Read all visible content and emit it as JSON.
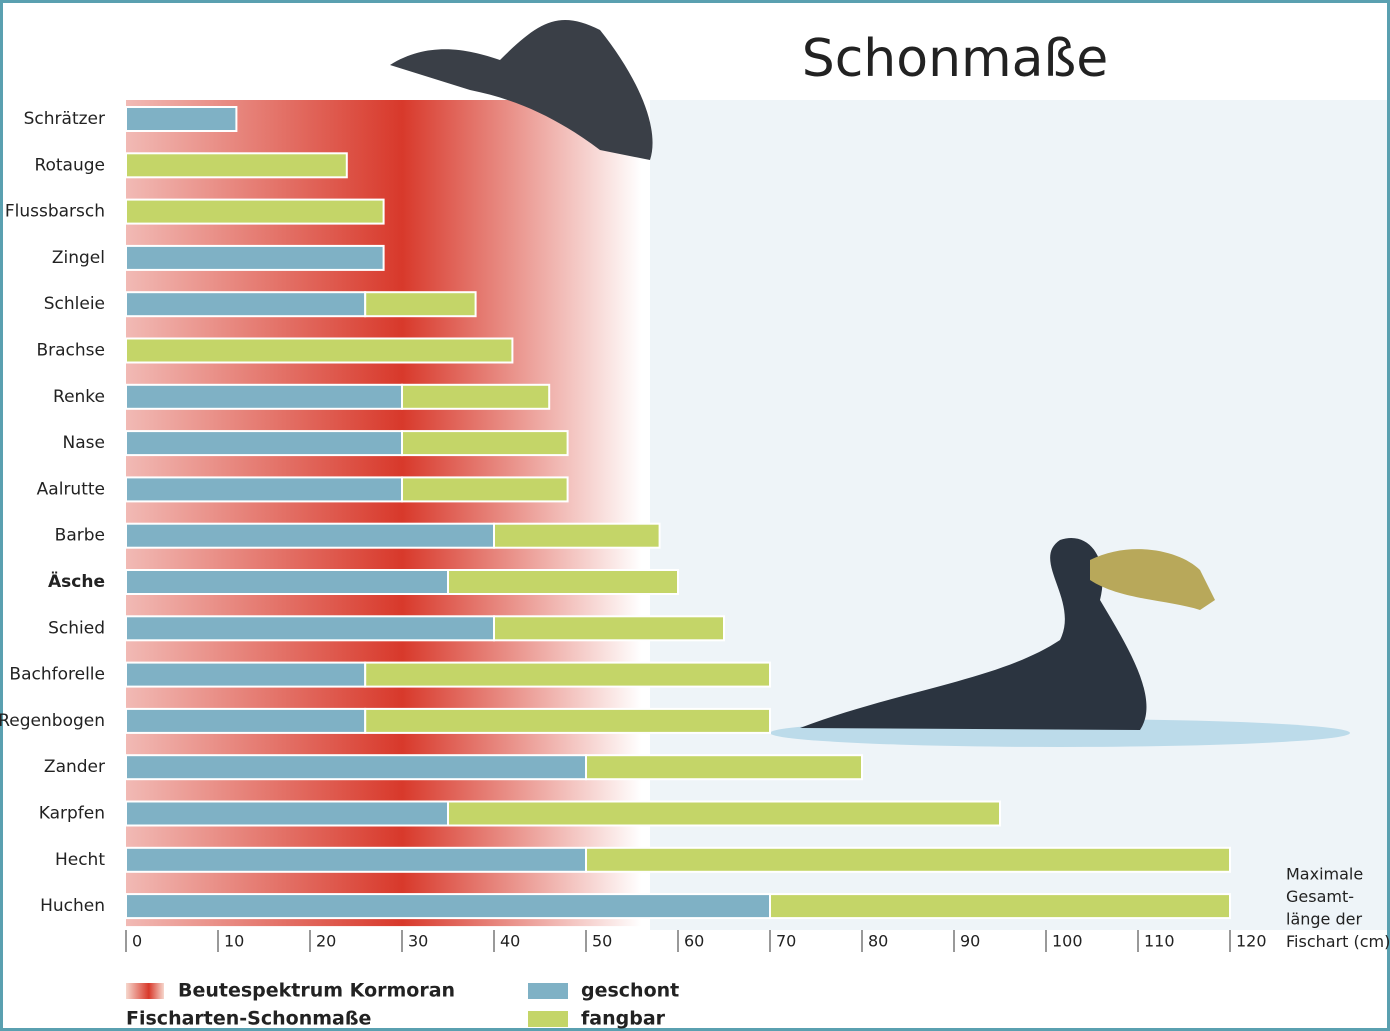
{
  "chart_data": {
    "type": "stacked-bar-horizontal",
    "title": "Schonmaße",
    "categories": [
      "Schrätzer",
      "Rotauge",
      "Flussbarsch",
      "Zingel",
      "Schleie",
      "Brachse",
      "Renke",
      "Nase",
      "Aalrutte",
      "Barbe",
      "Äsche",
      "Schied",
      "Bachforelle",
      "Regenbogen",
      "Zander",
      "Karpfen",
      "Hecht",
      "Huchen"
    ],
    "emphasis": "Äsche",
    "series": [
      {
        "name": "geschont",
        "color": "#7fb1c5",
        "values": [
          12,
          0,
          0,
          28,
          26,
          0,
          30,
          30,
          30,
          40,
          35,
          40,
          26,
          26,
          50,
          35,
          50,
          70
        ]
      },
      {
        "name": "fangbar",
        "color": "#c4d568",
        "values": [
          0,
          24,
          28,
          0,
          12,
          42,
          16,
          18,
          18,
          18,
          25,
          25,
          44,
          44,
          30,
          60,
          70,
          50
        ]
      }
    ],
    "highlight": {
      "name": "Beutespektrum Kormoran",
      "color": "#d8392b",
      "range": [
        0,
        56
      ],
      "peak": 30
    },
    "legend_title": "Fischarten-Schonmaße",
    "xlabel": [
      "Maximale",
      "Gesamt-",
      "länge der",
      "Fischart (cm)"
    ],
    "xlim": [
      0,
      120
    ],
    "xticks": [
      0,
      10,
      20,
      30,
      40,
      50,
      60,
      70,
      80,
      90,
      100,
      110,
      120
    ]
  }
}
